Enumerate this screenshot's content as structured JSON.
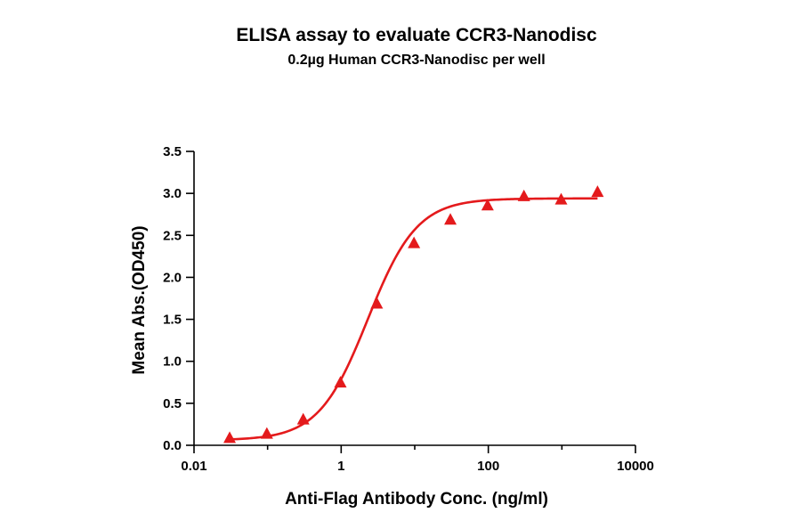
{
  "chart_data": {
    "type": "scatter",
    "title": "ELISA assay to evaluate CCR3-Nanodisc",
    "subtitle": "0.2µg Human CCR3-Nanodisc per well",
    "xlabel": "Anti-Flag Antibody Conc. (ng/ml)",
    "ylabel": "Mean Abs.(OD450)",
    "x_scale": "log",
    "xlim": [
      0.01,
      10000
    ],
    "ylim": [
      0,
      3.5
    ],
    "x_ticks": [
      {
        "value": 0.01,
        "label": "0.01"
      },
      {
        "value": 1,
        "label": "1"
      },
      {
        "value": 100,
        "label": "100"
      },
      {
        "value": 10000,
        "label": "10000"
      }
    ],
    "y_ticks": [
      {
        "value": 0,
        "label": "0.0"
      },
      {
        "value": 0.5,
        "label": "0.5"
      },
      {
        "value": 1,
        "label": "1.0"
      },
      {
        "value": 1.5,
        "label": "1.5"
      },
      {
        "value": 2,
        "label": "2.0"
      },
      {
        "value": 2.5,
        "label": "2.5"
      },
      {
        "value": 3,
        "label": "3.0"
      },
      {
        "value": 3.5,
        "label": "3.5"
      }
    ],
    "grid": false,
    "legend": "none",
    "color": "#e41a1c",
    "marker": "triangle",
    "series": [
      {
        "x": [
          0.0305,
          0.0977,
          0.305,
          0.977,
          3.05,
          9.77,
          30.5,
          97.7,
          305,
          977,
          3052
        ],
        "y": [
          0.08,
          0.13,
          0.3,
          0.74,
          1.68,
          2.4,
          2.68,
          2.85,
          2.96,
          2.92,
          3.01
        ]
      }
    ],
    "fit_curve": {
      "type": "4PL",
      "bottom": 0.06,
      "top": 2.94,
      "ec50": 2.3,
      "hill": 1.3
    }
  }
}
